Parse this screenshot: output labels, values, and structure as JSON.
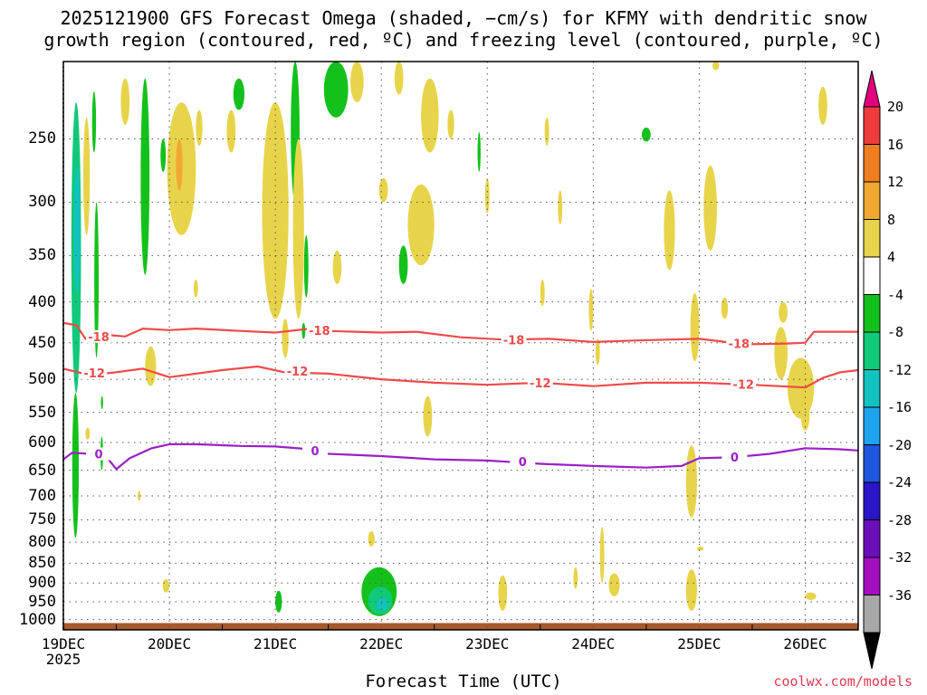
{
  "title": {
    "line1": "2025121900 GFS Forecast Omega (shaded, −cm/s) for KFMY with dendritic snow",
    "line2": "growth region (contoured, red, ºC) and freezing level (contoured, purple, ºC)"
  },
  "xlabel": "Forecast Time (UTC)",
  "credit": "coolwx.com/models",
  "chart_data": {
    "type": "heatmap",
    "x_ticks": [
      {
        "label": "19DEC",
        "sub": "2025",
        "t": 0
      },
      {
        "label": "20DEC",
        "sub": "",
        "t": 24
      },
      {
        "label": "21DEC",
        "sub": "",
        "t": 48
      },
      {
        "label": "22DEC",
        "sub": "",
        "t": 72
      },
      {
        "label": "23DEC",
        "sub": "",
        "t": 96
      },
      {
        "label": "24DEC",
        "sub": "",
        "t": 120
      },
      {
        "label": "25DEC",
        "sub": "",
        "t": 144
      },
      {
        "label": "26DEC",
        "sub": "",
        "t": 168
      }
    ],
    "x_range_hours": [
      0,
      180
    ],
    "y_ticks": [
      250,
      300,
      350,
      400,
      450,
      500,
      550,
      600,
      650,
      700,
      750,
      800,
      850,
      900,
      950,
      1000
    ],
    "y_range_hPa": [
      200,
      1030
    ],
    "y_scale": "log",
    "grid": true,
    "colorbar": {
      "labels": [
        "20",
        "16",
        "12",
        "8",
        "4",
        "-4",
        "-8",
        "-12",
        "-16",
        "-20",
        "-24",
        "-28",
        "-32",
        "-36"
      ],
      "colors": [
        "#e3007d",
        "#ef3b3b",
        "#f07e20",
        "#f0a830",
        "#e8d44a",
        "#ffffff",
        "#14c11c",
        "#11c97a",
        "#12c2c0",
        "#1ea4ef",
        "#1f56e0",
        "#2a16c6",
        "#6a0fb8",
        "#a50ec0",
        "#a8a8a8",
        "#000000"
      ]
    },
    "contours": [
      {
        "name": "-18",
        "color": "#ef4a4a",
        "points": [
          [
            0,
            425
          ],
          [
            3,
            428
          ],
          [
            5,
            445
          ],
          [
            10,
            440
          ],
          [
            14,
            442
          ],
          [
            18,
            432
          ],
          [
            24,
            434
          ],
          [
            30,
            432
          ],
          [
            40,
            435
          ],
          [
            48,
            437
          ],
          [
            56,
            432
          ],
          [
            60,
            435
          ],
          [
            72,
            437
          ],
          [
            80,
            436
          ],
          [
            90,
            443
          ],
          [
            100,
            446
          ],
          [
            110,
            445
          ],
          [
            120,
            449
          ],
          [
            130,
            447
          ],
          [
            144,
            445
          ],
          [
            150,
            449
          ],
          [
            156,
            452
          ],
          [
            164,
            451
          ],
          [
            168,
            450
          ],
          [
            170,
            436
          ],
          [
            180,
            436
          ]
        ],
        "labels": [
          {
            "t": 8,
            "p": 442
          },
          {
            "t": 58,
            "p": 434
          },
          {
            "t": 102,
            "p": 446
          },
          {
            "t": 153,
            "p": 451
          }
        ]
      },
      {
        "name": "-12",
        "color": "#ef4a4a",
        "points": [
          [
            0,
            485
          ],
          [
            6,
            494
          ],
          [
            12,
            490
          ],
          [
            18,
            485
          ],
          [
            24,
            497
          ],
          [
            36,
            487
          ],
          [
            44,
            482
          ],
          [
            50,
            490
          ],
          [
            60,
            492
          ],
          [
            72,
            500
          ],
          [
            84,
            505
          ],
          [
            96,
            508
          ],
          [
            108,
            505
          ],
          [
            120,
            510
          ],
          [
            132,
            505
          ],
          [
            144,
            505
          ],
          [
            156,
            508
          ],
          [
            168,
            512
          ],
          [
            172,
            498
          ],
          [
            176,
            490
          ],
          [
            180,
            487
          ]
        ],
        "labels": [
          {
            "t": 7,
            "p": 491
          },
          {
            "t": 53,
            "p": 488
          },
          {
            "t": 108,
            "p": 505
          },
          {
            "t": 154,
            "p": 507
          }
        ]
      },
      {
        "name": "0",
        "color": "#9b1fc7",
        "points": [
          [
            0,
            630
          ],
          [
            2,
            618
          ],
          [
            6,
            620
          ],
          [
            10,
            628
          ],
          [
            12,
            648
          ],
          [
            15,
            628
          ],
          [
            20,
            610
          ],
          [
            24,
            603
          ],
          [
            30,
            603
          ],
          [
            40,
            606
          ],
          [
            48,
            607
          ],
          [
            56,
            612
          ],
          [
            60,
            620
          ],
          [
            72,
            624
          ],
          [
            84,
            630
          ],
          [
            96,
            632
          ],
          [
            108,
            638
          ],
          [
            120,
            642
          ],
          [
            132,
            645
          ],
          [
            140,
            642
          ],
          [
            144,
            628
          ],
          [
            152,
            626
          ],
          [
            160,
            620
          ],
          [
            168,
            610
          ],
          [
            176,
            612
          ],
          [
            180,
            614
          ]
        ],
        "labels": [
          {
            "t": 8,
            "p": 620
          },
          {
            "t": 57,
            "p": 614
          },
          {
            "t": 104,
            "p": 634
          },
          {
            "t": 152,
            "p": 626
          }
        ]
      }
    ],
    "shaded": [
      {
        "v": 6,
        "t0": 4.5,
        "t1": 6.0,
        "p0": 235,
        "p1": 330
      },
      {
        "v": -10,
        "t0": 1.8,
        "t1": 4.0,
        "p0": 225,
        "p1": 520
      },
      {
        "v": -14,
        "t0": 2.4,
        "t1": 3.8,
        "p0": 270,
        "p1": 390
      },
      {
        "v": -6,
        "t0": 2.0,
        "t1": 3.5,
        "p0": 520,
        "p1": 790
      },
      {
        "v": -6,
        "t0": 6.5,
        "t1": 7.4,
        "p0": 218,
        "p1": 260
      },
      {
        "v": -6,
        "t0": 7.0,
        "t1": 8.0,
        "p0": 300,
        "p1": 470
      },
      {
        "v": -6,
        "t0": 8.4,
        "t1": 9.0,
        "p0": 590,
        "p1": 650
      },
      {
        "v": -6,
        "t0": 17.5,
        "t1": 19.5,
        "p0": 210,
        "p1": 370
      },
      {
        "v": -6,
        "t0": 19.5,
        "t1": 20.5,
        "p0": 455,
        "p1": 500
      },
      {
        "v": 6,
        "t0": 13.0,
        "t1": 15.0,
        "p0": 210,
        "p1": 240
      },
      {
        "v": 6,
        "t0": 18.5,
        "t1": 21.0,
        "p0": 455,
        "p1": 510
      },
      {
        "v": 6,
        "t0": 23.5,
        "t1": 30.0,
        "p0": 225,
        "p1": 330
      },
      {
        "v": 10,
        "t0": 25.5,
        "t1": 27.0,
        "p0": 250,
        "p1": 290
      },
      {
        "v": -6,
        "t0": 22.0,
        "t1": 23.2,
        "p0": 250,
        "p1": 275
      },
      {
        "v": -6,
        "t0": 38.5,
        "t1": 41.0,
        "p0": 210,
        "p1": 230
      },
      {
        "v": 6,
        "t0": 30.0,
        "t1": 31.5,
        "p0": 230,
        "p1": 255
      },
      {
        "v": 6,
        "t0": 29.5,
        "t1": 30.5,
        "p0": 375,
        "p1": 395
      },
      {
        "v": 6,
        "t0": 37.0,
        "t1": 39.0,
        "p0": 230,
        "p1": 260
      },
      {
        "v": 6,
        "t0": 45.0,
        "t1": 51.0,
        "p0": 225,
        "p1": 420
      },
      {
        "v": 6,
        "t0": 49.5,
        "t1": 51.0,
        "p0": 420,
        "p1": 470
      },
      {
        "v": -6,
        "t0": 51.5,
        "t1": 53.5,
        "p0": 200,
        "p1": 300
      },
      {
        "v": -6,
        "t0": 54.5,
        "t1": 55.5,
        "p0": 330,
        "p1": 395
      },
      {
        "v": -6,
        "t0": 54.0,
        "t1": 54.8,
        "p0": 425,
        "p1": 445
      },
      {
        "v": 6,
        "t0": 52.0,
        "t1": 54.5,
        "p0": 250,
        "p1": 420
      },
      {
        "v": 6,
        "t0": 61.0,
        "t1": 63.0,
        "p0": 345,
        "p1": 380
      },
      {
        "v": -6,
        "t0": 59.0,
        "t1": 64.5,
        "p0": 200,
        "p1": 235
      },
      {
        "v": 6,
        "t0": 65.0,
        "t1": 68.0,
        "p0": 200,
        "p1": 225
      },
      {
        "v": 6,
        "t0": 71.5,
        "t1": 73.5,
        "p0": 280,
        "p1": 300
      },
      {
        "v": 6,
        "t0": 75.0,
        "t1": 77.0,
        "p0": 200,
        "p1": 220
      },
      {
        "v": 6,
        "t0": 78.0,
        "t1": 84.0,
        "p0": 285,
        "p1": 360
      },
      {
        "v": 6,
        "t0": 81.0,
        "t1": 85.0,
        "p0": 210,
        "p1": 260
      },
      {
        "v": -6,
        "t0": 76.0,
        "t1": 78.0,
        "p0": 340,
        "p1": 380
      },
      {
        "v": 6,
        "t0": 87.0,
        "t1": 88.5,
        "p0": 230,
        "p1": 250
      },
      {
        "v": -6,
        "t0": 93.8,
        "t1": 94.5,
        "p0": 245,
        "p1": 275
      },
      {
        "v": 6,
        "t0": 95.5,
        "t1": 96.5,
        "p0": 280,
        "p1": 310
      },
      {
        "v": 6,
        "t0": 109.0,
        "t1": 110.0,
        "p0": 235,
        "p1": 255
      },
      {
        "v": 6,
        "t0": 112.0,
        "t1": 113.0,
        "p0": 290,
        "p1": 320
      },
      {
        "v": 6,
        "t0": 108.0,
        "t1": 109.0,
        "p0": 375,
        "p1": 405
      },
      {
        "v": 6,
        "t0": 81.5,
        "t1": 83.5,
        "p0": 525,
        "p1": 590
      },
      {
        "v": 6,
        "t0": 119.0,
        "t1": 120.0,
        "p0": 385,
        "p1": 435
      },
      {
        "v": 6,
        "t0": 120.5,
        "t1": 121.5,
        "p0": 445,
        "p1": 480
      },
      {
        "v": -6,
        "t0": 131.0,
        "t1": 133.0,
        "p0": 242,
        "p1": 252
      },
      {
        "v": 6,
        "t0": 145.0,
        "t1": 148.0,
        "p0": 270,
        "p1": 345
      },
      {
        "v": 6,
        "t0": 136.0,
        "t1": 138.5,
        "p0": 290,
        "p1": 365
      },
      {
        "v": 6,
        "t0": 142.0,
        "t1": 144.0,
        "p0": 390,
        "p1": 475
      },
      {
        "v": 6,
        "t0": 149.0,
        "t1": 150.5,
        "p0": 395,
        "p1": 420
      },
      {
        "v": 6,
        "t0": 161.0,
        "t1": 164.0,
        "p0": 430,
        "p1": 500
      },
      {
        "v": 6,
        "t0": 164.0,
        "t1": 170.0,
        "p0": 470,
        "p1": 560
      },
      {
        "v": 6,
        "t0": 167.0,
        "t1": 169.0,
        "p0": 530,
        "p1": 580
      },
      {
        "v": 6,
        "t0": 162.0,
        "t1": 164.0,
        "p0": 400,
        "p1": 425
      },
      {
        "v": 6,
        "t0": 171.0,
        "t1": 173.0,
        "p0": 215,
        "p1": 240
      },
      {
        "v": 6,
        "t0": 147.0,
        "t1": 148.5,
        "p0": 200,
        "p1": 205
      },
      {
        "v": 6,
        "t0": 141.0,
        "t1": 143.5,
        "p0": 605,
        "p1": 745
      },
      {
        "v": 6,
        "t0": 141.0,
        "t1": 143.5,
        "p0": 865,
        "p1": 975
      },
      {
        "v": 6,
        "t0": 143.5,
        "t1": 145.0,
        "p0": 810,
        "p1": 820
      },
      {
        "v": 6,
        "t0": 98.5,
        "t1": 100.5,
        "p0": 880,
        "p1": 975
      },
      {
        "v": 6,
        "t0": 123.5,
        "t1": 126.0,
        "p0": 875,
        "p1": 935
      },
      {
        "v": 6,
        "t0": 121.5,
        "t1": 122.5,
        "p0": 765,
        "p1": 900
      },
      {
        "v": 6,
        "t0": 115.5,
        "t1": 116.5,
        "p0": 860,
        "p1": 915
      },
      {
        "v": 6,
        "t0": 168.0,
        "t1": 170.5,
        "p0": 925,
        "p1": 945
      },
      {
        "v": 6,
        "t0": 22.5,
        "t1": 24.0,
        "p0": 890,
        "p1": 925
      },
      {
        "v": 6,
        "t0": 16.8,
        "t1": 17.5,
        "p0": 690,
        "p1": 710
      },
      {
        "v": 6,
        "t0": 5.0,
        "t1": 6.0,
        "p0": 575,
        "p1": 595
      },
      {
        "v": 6,
        "t0": 69.0,
        "t1": 70.5,
        "p0": 775,
        "p1": 810
      },
      {
        "v": -6,
        "t0": 48.0,
        "t1": 49.5,
        "p0": 920,
        "p1": 980
      },
      {
        "v": -6,
        "t0": 67.5,
        "t1": 75.5,
        "p0": 860,
        "p1": 990
      },
      {
        "v": -10,
        "t0": 69.0,
        "t1": 74.5,
        "p0": 910,
        "p1": 985
      },
      {
        "v": -14,
        "t0": 71.0,
        "t1": 73.5,
        "p0": 940,
        "p1": 975
      },
      {
        "v": -6,
        "t0": 8.5,
        "t1": 9.0,
        "p0": 525,
        "p1": 545
      }
    ]
  }
}
